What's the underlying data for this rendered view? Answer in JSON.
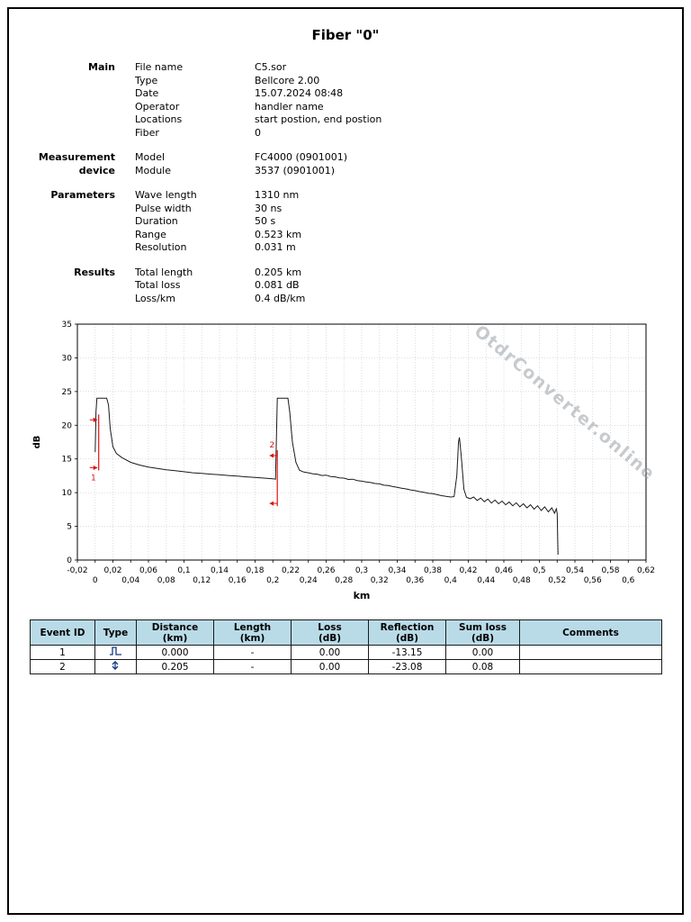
{
  "page": {
    "title": "Fiber \"0\""
  },
  "sections": [
    {
      "label": "Main",
      "rows": [
        {
          "key": "File name",
          "value": "C5.sor"
        },
        {
          "key": "Type",
          "value": "Bellcore 2.00"
        },
        {
          "key": "Date",
          "value": "15.07.2024 08:48"
        },
        {
          "key": "Operator",
          "value": "handler name"
        },
        {
          "key": "Locations",
          "value": "start postion, end postion"
        },
        {
          "key": "Fiber",
          "value": "0"
        }
      ]
    },
    {
      "label": "Measurement device",
      "rows": [
        {
          "key": "Model",
          "value": "FC4000 (0901001)"
        },
        {
          "key": "Module",
          "value": "3537 (0901001)"
        }
      ]
    },
    {
      "label": "Parameters",
      "rows": [
        {
          "key": "Wave length",
          "value": "1310 nm"
        },
        {
          "key": "Pulse width",
          "value": "30 ns"
        },
        {
          "key": "Duration",
          "value": "50 s"
        },
        {
          "key": "Range",
          "value": "0.523 km"
        },
        {
          "key": "Resolution",
          "value": "0.031 m"
        }
      ]
    },
    {
      "label": "Results",
      "rows": [
        {
          "key": "Total length",
          "value": "0.205 km"
        },
        {
          "key": "Total loss",
          "value": "0.081 dB"
        },
        {
          "key": "Loss/km",
          "value": "0.4 dB/km"
        }
      ]
    }
  ],
  "watermark": "OtdrConverter.online",
  "colors": {
    "trace": "#1a1a1a",
    "event_marker": "#e01212",
    "grid": "#c9c9c9",
    "watermark": "#9aa0a6",
    "table_header_bg": "#b9dbe7",
    "icon": "#14387f"
  },
  "chart_data": {
    "type": "line",
    "title": "",
    "xlabel": "km",
    "ylabel": "dB",
    "xlim": [
      -0.02,
      0.62
    ],
    "ylim": [
      0,
      35
    ],
    "x_tick_step": 0.02,
    "y_tick_step": 5,
    "grid": true,
    "legend": "none",
    "trace": [
      [
        0,
        16
      ],
      [
        0.001,
        22
      ],
      [
        0.002,
        24
      ],
      [
        0.013,
        24
      ],
      [
        0.015,
        23
      ],
      [
        0.017,
        19.5
      ],
      [
        0.02,
        16.8
      ],
      [
        0.024,
        15.8
      ],
      [
        0.03,
        15.2
      ],
      [
        0.04,
        14.5
      ],
      [
        0.05,
        14.1
      ],
      [
        0.06,
        13.8
      ],
      [
        0.07,
        13.6
      ],
      [
        0.08,
        13.4
      ],
      [
        0.09,
        13.25
      ],
      [
        0.1,
        13.1
      ],
      [
        0.11,
        12.95
      ],
      [
        0.12,
        12.85
      ],
      [
        0.13,
        12.75
      ],
      [
        0.14,
        12.65
      ],
      [
        0.15,
        12.55
      ],
      [
        0.16,
        12.45
      ],
      [
        0.17,
        12.35
      ],
      [
        0.18,
        12.25
      ],
      [
        0.19,
        12.15
      ],
      [
        0.2,
        12.05
      ],
      [
        0.203,
        12
      ],
      [
        0.205,
        24
      ],
      [
        0.217,
        24
      ],
      [
        0.219,
        22
      ],
      [
        0.222,
        17.5
      ],
      [
        0.226,
        14.5
      ],
      [
        0.23,
        13.3
      ],
      [
        0.235,
        13.05
      ],
      [
        0.24,
        12.95
      ],
      [
        0.245,
        12.8
      ],
      [
        0.25,
        12.75
      ],
      [
        0.255,
        12.55
      ],
      [
        0.26,
        12.6
      ],
      [
        0.265,
        12.4
      ],
      [
        0.27,
        12.35
      ],
      [
        0.275,
        12.2
      ],
      [
        0.28,
        12.15
      ],
      [
        0.285,
        11.95
      ],
      [
        0.29,
        12
      ],
      [
        0.295,
        11.8
      ],
      [
        0.3,
        11.7
      ],
      [
        0.305,
        11.6
      ],
      [
        0.31,
        11.5
      ],
      [
        0.315,
        11.35
      ],
      [
        0.32,
        11.3
      ],
      [
        0.325,
        11.1
      ],
      [
        0.33,
        11.05
      ],
      [
        0.335,
        10.9
      ],
      [
        0.34,
        10.8
      ],
      [
        0.345,
        10.65
      ],
      [
        0.35,
        10.55
      ],
      [
        0.355,
        10.4
      ],
      [
        0.36,
        10.3
      ],
      [
        0.365,
        10.15
      ],
      [
        0.37,
        10.05
      ],
      [
        0.375,
        9.9
      ],
      [
        0.38,
        9.85
      ],
      [
        0.385,
        9.7
      ],
      [
        0.39,
        9.55
      ],
      [
        0.395,
        9.45
      ],
      [
        0.4,
        9.35
      ],
      [
        0.404,
        9.4
      ],
      [
        0.407,
        12.5
      ],
      [
        0.409,
        17.5
      ],
      [
        0.41,
        18.2
      ],
      [
        0.412,
        15.5
      ],
      [
        0.415,
        10.5
      ],
      [
        0.418,
        9.3
      ],
      [
        0.422,
        9.1
      ],
      [
        0.426,
        9.35
      ],
      [
        0.43,
        8.85
      ],
      [
        0.434,
        9.2
      ],
      [
        0.438,
        8.65
      ],
      [
        0.442,
        9.05
      ],
      [
        0.446,
        8.45
      ],
      [
        0.45,
        8.9
      ],
      [
        0.454,
        8.35
      ],
      [
        0.458,
        8.75
      ],
      [
        0.462,
        8.2
      ],
      [
        0.466,
        8.6
      ],
      [
        0.47,
        8.05
      ],
      [
        0.474,
        8.5
      ],
      [
        0.478,
        7.9
      ],
      [
        0.482,
        8.35
      ],
      [
        0.486,
        7.75
      ],
      [
        0.49,
        8.2
      ],
      [
        0.494,
        7.55
      ],
      [
        0.498,
        8.05
      ],
      [
        0.502,
        7.35
      ],
      [
        0.506,
        7.9
      ],
      [
        0.51,
        7.15
      ],
      [
        0.514,
        7.75
      ],
      [
        0.517,
        6.95
      ],
      [
        0.519,
        7.6
      ],
      [
        0.52,
        6.9
      ],
      [
        0.521,
        0.8
      ]
    ],
    "events": [
      {
        "id": "1",
        "x": 0.004,
        "y_bottom": 13.3,
        "y_top": 21.6,
        "arrow": "right",
        "label_pos": "bottom"
      },
      {
        "id": "2",
        "x": 0.205,
        "y_bottom": 8.0,
        "y_top": 16.3,
        "arrow": "left",
        "label_pos": "top"
      }
    ]
  },
  "table": {
    "headers": [
      {
        "label": "Event ID",
        "unit": ""
      },
      {
        "label": "Type",
        "unit": ""
      },
      {
        "label": "Distance",
        "unit": "(km)"
      },
      {
        "label": "Length",
        "unit": "(km)"
      },
      {
        "label": "Loss",
        "unit": "(dB)"
      },
      {
        "label": "Reflection",
        "unit": "(dB)"
      },
      {
        "label": "Sum loss",
        "unit": "(dB)"
      },
      {
        "label": "Comments",
        "unit": ""
      }
    ],
    "rows": [
      {
        "event_id": "1",
        "type": "reflective-event",
        "distance": "0.000",
        "length": "-",
        "loss": "0.00",
        "reflection": "-13.15",
        "sum_loss": "0.00",
        "comments": ""
      },
      {
        "event_id": "2",
        "type": "fiber-end",
        "distance": "0.205",
        "length": "-",
        "loss": "0.00",
        "reflection": "-23.08",
        "sum_loss": "0.08",
        "comments": ""
      }
    ]
  }
}
